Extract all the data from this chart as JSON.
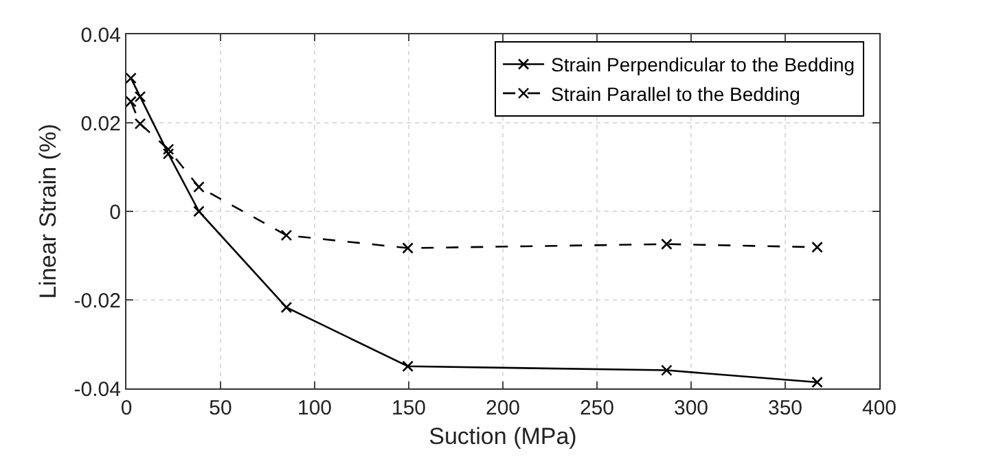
{
  "chart_data": {
    "type": "line",
    "xlabel": "Suction (MPa)",
    "ylabel": "Linear Strain (%)",
    "xlim": [
      0,
      400
    ],
    "xticks": [
      0,
      50,
      100,
      150,
      200,
      250,
      300,
      350,
      400
    ],
    "ylim": [
      -0.04,
      0.04
    ],
    "yticks": [
      -0.04,
      -0.02,
      0,
      0.02,
      0.04
    ],
    "grid": true,
    "legend": "top right",
    "marker": "cross",
    "series": [
      {
        "name": "Strain Perpendicular to the Bedding",
        "color": "#000000",
        "line_style": "solid",
        "x": [
          2.4,
          7.3,
          22.3,
          38.5,
          85,
          149.5,
          287,
          367
        ],
        "values": [
          0.0301,
          0.0259,
          0.013,
          0.0,
          -0.0217,
          -0.035,
          -0.0359,
          -0.0386
        ]
      },
      {
        "name": "Strain Parallel to the Bedding",
        "color": "#000000",
        "line_style": "dashed",
        "x": [
          2.4,
          7.3,
          22.3,
          38.5,
          85,
          149.5,
          287,
          367
        ],
        "values": [
          0.0248,
          0.0198,
          0.014,
          0.0055,
          -0.0054,
          -0.0083,
          -0.0074,
          -0.0081
        ]
      }
    ]
  }
}
